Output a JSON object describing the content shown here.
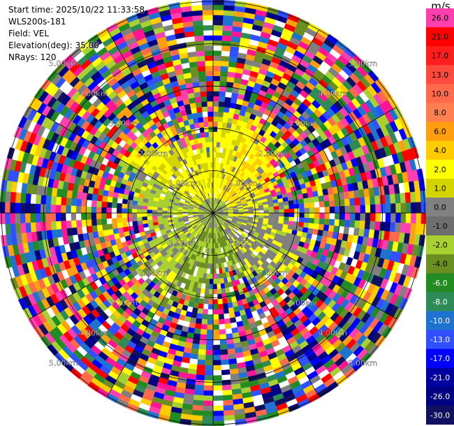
{
  "header": {
    "start_time": "Start time: 2025/10/22 11:33:58",
    "instrument": "WLS200s-181",
    "field": "Field: VEL",
    "elevation": "Elevation(deg): 35.00",
    "nrays": "NRays: 120"
  },
  "chart_data": {
    "type": "heatmap",
    "projection": "polar",
    "field": "VEL",
    "nrays": 120,
    "elevation_deg": 35.0,
    "range_rings": [
      {
        "label": "1.00km",
        "range_km": 1
      },
      {
        "label": "2.00km",
        "range_km": 2
      },
      {
        "label": "3.00km",
        "range_km": 3
      },
      {
        "label": "4.00km",
        "range_km": 4
      },
      {
        "label": "5.00km",
        "range_km": 5
      }
    ],
    "max_range_km": 5.0,
    "colorbar": {
      "unit": "m/s",
      "ticks": [
        "26.0",
        "21.0",
        "17.0",
        "13.0",
        "10.0",
        "8.0",
        "6.0",
        "4.0",
        "2.0",
        "1.0",
        "0.0",
        "-1.0",
        "-2.0",
        "-4.0",
        "-6.0",
        "-8.0",
        "-10.0",
        "-13.0",
        "-17.0",
        "-21.0",
        "-26.0",
        "-30.0"
      ],
      "colors": [
        "#ff3fae",
        "#ff0000",
        "#ff1f1f",
        "#ff4a3d",
        "#ff6b4a",
        "#ff7f50",
        "#ff9f10",
        "#ffcc00",
        "#ffff00",
        "#d4d400",
        "#808080",
        "#6e6e6e",
        "#a8d030",
        "#6b8e23",
        "#228b22",
        "#2e8b57",
        "#1e73d0",
        "#3050ff",
        "#0000ff",
        "#0000a0",
        "#000080",
        "#101060"
      ]
    },
    "inner_region": {
      "north_west": "yellow",
      "north_east": "yellow",
      "east": "gray",
      "south": "olive-green",
      "west": "yellow-green"
    },
    "outer_region": "noise"
  }
}
